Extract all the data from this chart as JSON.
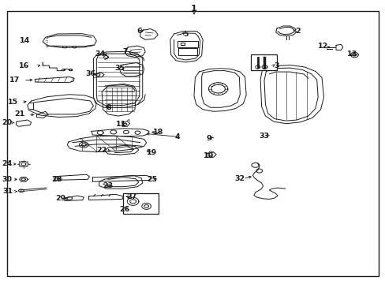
{
  "figsize": [
    4.89,
    3.6
  ],
  "dpi": 100,
  "bg": "#ffffff",
  "lc": "#1a1a1a",
  "labels": {
    "1": [
      0.502,
      0.972,
      "center",
      "center"
    ],
    "2": [
      0.76,
      0.893,
      "left",
      "center"
    ],
    "3": [
      0.698,
      0.77,
      "left",
      "center"
    ],
    "4": [
      0.452,
      0.518,
      "left",
      "center"
    ],
    "5": [
      0.465,
      0.88,
      "left",
      "center"
    ],
    "6": [
      0.352,
      0.893,
      "left",
      "center"
    ],
    "7": [
      0.322,
      0.818,
      "left",
      "center"
    ],
    "8": [
      0.278,
      0.618,
      "left",
      "center"
    ],
    "9": [
      0.538,
      0.512,
      "left",
      "center"
    ],
    "10": [
      0.538,
      0.45,
      "left",
      "center"
    ],
    "11": [
      0.31,
      0.562,
      "left",
      "center"
    ],
    "12": [
      0.835,
      0.835,
      "left",
      "center"
    ],
    "13": [
      0.912,
      0.808,
      "left",
      "center"
    ],
    "14": [
      0.07,
      0.858,
      "left",
      "center"
    ],
    "15": [
      0.035,
      0.64,
      "left",
      "center"
    ],
    "16": [
      0.068,
      0.768,
      "left",
      "center"
    ],
    "17": [
      0.04,
      0.718,
      "left",
      "center"
    ],
    "18": [
      0.398,
      0.533,
      "left",
      "center"
    ],
    "19": [
      0.382,
      0.462,
      "left",
      "center"
    ],
    "20": [
      0.018,
      0.568,
      "left",
      "center"
    ],
    "21": [
      0.052,
      0.598,
      "left",
      "center"
    ],
    "22": [
      0.27,
      0.468,
      "left",
      "center"
    ],
    "23": [
      0.285,
      0.342,
      "left",
      "center"
    ],
    "24": [
      0.018,
      0.422,
      "left",
      "center"
    ],
    "25": [
      0.388,
      0.368,
      "left",
      "center"
    ],
    "26": [
      0.318,
      0.262,
      "left",
      "center"
    ],
    "27": [
      0.332,
      0.305,
      "left",
      "center"
    ],
    "28": [
      0.148,
      0.368,
      "left",
      "center"
    ],
    "29": [
      0.158,
      0.298,
      "left",
      "center"
    ],
    "30": [
      0.018,
      0.368,
      "left",
      "center"
    ],
    "31": [
      0.022,
      0.325,
      "left",
      "center"
    ],
    "32": [
      0.618,
      0.37,
      "left",
      "center"
    ],
    "33": [
      0.68,
      0.522,
      "left",
      "center"
    ],
    "34": [
      0.262,
      0.808,
      "left",
      "center"
    ],
    "35": [
      0.31,
      0.758,
      "left",
      "center"
    ],
    "36": [
      0.238,
      0.738,
      "left",
      "center"
    ]
  }
}
